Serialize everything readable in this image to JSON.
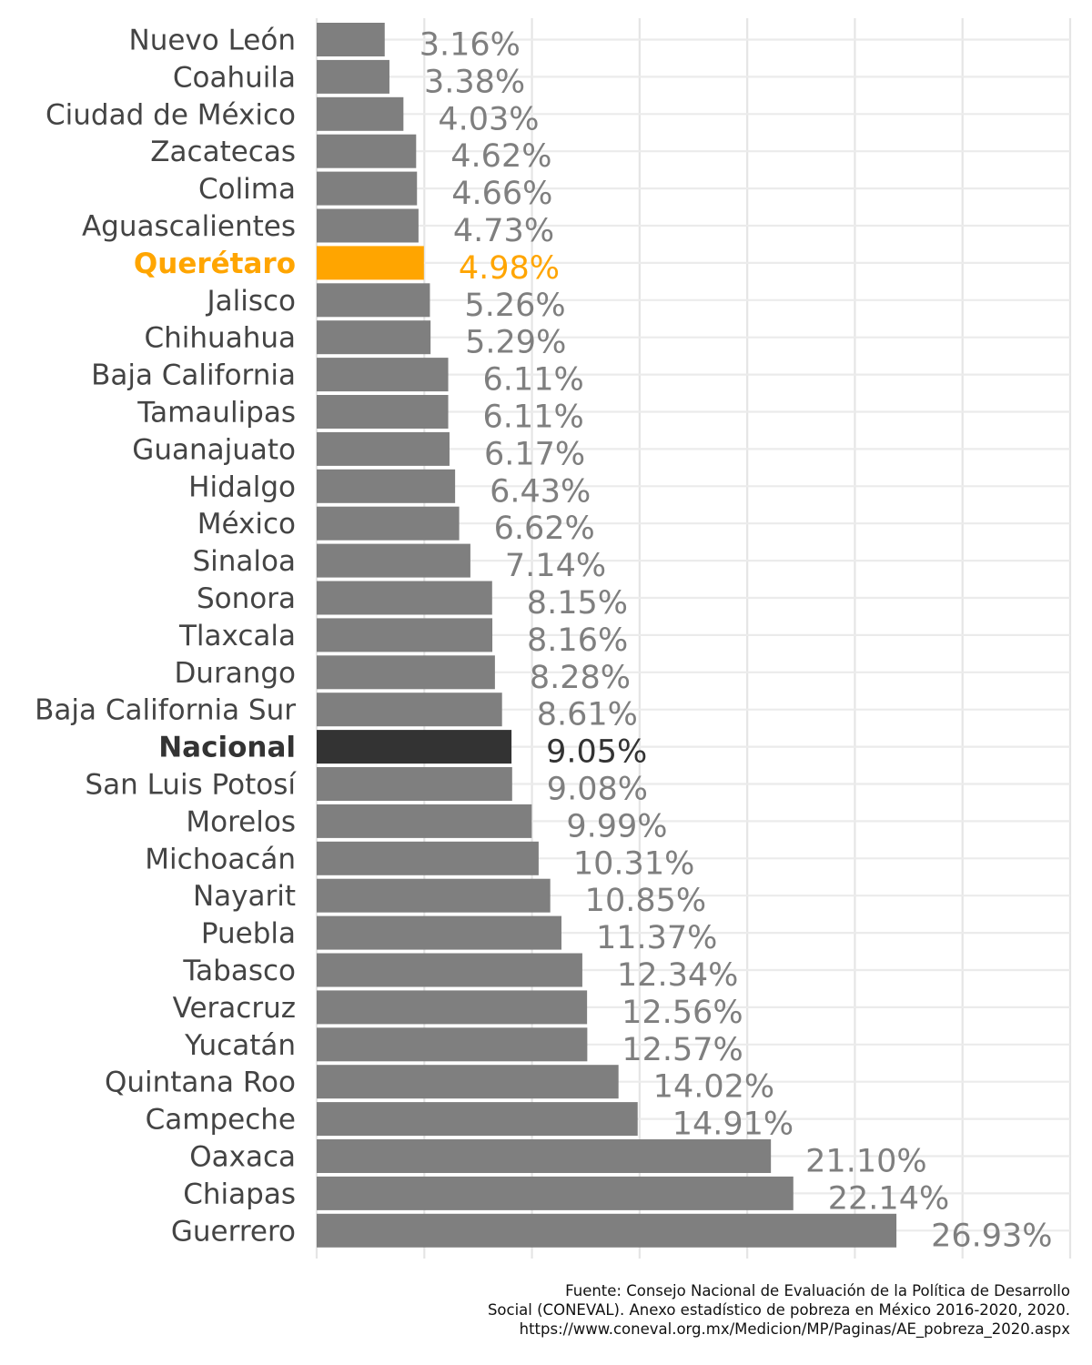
{
  "chart_data": {
    "type": "bar",
    "orientation": "horizontal",
    "categories": [
      "Nuevo León",
      "Coahuila",
      "Ciudad de México",
      "Zacatecas",
      "Colima",
      "Aguascalientes",
      "Querétaro",
      "Jalisco",
      "Chihuahua",
      "Baja California",
      "Tamaulipas",
      "Guanajuato",
      "Hidalgo",
      "México",
      "Sinaloa",
      "Sonora",
      "Tlaxcala",
      "Durango",
      "Baja California Sur",
      "Nacional",
      "San Luis Potosí",
      "Morelos",
      "Michoacán",
      "Nayarit",
      "Puebla",
      "Tabasco",
      "Veracruz",
      "Yucatán",
      "Quintana Roo",
      "Campeche",
      "Oaxaca",
      "Chiapas",
      "Guerrero"
    ],
    "values": [
      3.16,
      3.38,
      4.03,
      4.62,
      4.66,
      4.73,
      4.98,
      5.26,
      5.29,
      6.11,
      6.11,
      6.17,
      6.43,
      6.62,
      7.14,
      8.15,
      8.16,
      8.28,
      8.61,
      9.05,
      9.08,
      9.99,
      10.31,
      10.85,
      11.37,
      12.34,
      12.56,
      12.57,
      14.02,
      14.91,
      21.1,
      22.14,
      26.93
    ],
    "value_labels": [
      "3.16%",
      "3.38%",
      "4.03%",
      "4.62%",
      "4.66%",
      "4.73%",
      "4.98%",
      "5.26%",
      "5.29%",
      "6.11%",
      "6.11%",
      "6.17%",
      "6.43%",
      "6.62%",
      "7.14%",
      "8.15%",
      "8.16%",
      "8.28%",
      "8.61%",
      "9.05%",
      "9.08%",
      "9.99%",
      "10.31%",
      "10.85%",
      "11.37%",
      "12.34%",
      "12.56%",
      "12.57%",
      "14.02%",
      "14.91%",
      "21.10%",
      "22.14%",
      "26.93%"
    ],
    "highlight": {
      "Querétaro": "#ffa500",
      "Nacional": "#333333"
    },
    "bold_categories": [
      "Querétaro",
      "Nacional"
    ],
    "bar_color": "#7f7f7f",
    "label_color": "#7f7f7f",
    "title": "",
    "xlabel": "",
    "ylabel": "",
    "xlim": [
      0,
      35
    ],
    "grid": true,
    "legend": "none"
  },
  "source": {
    "lines": [
      "Fuente: Consejo Nacional de Evaluación de la Política de Desarrollo",
      "Social (CONEVAL). Anexo estadístico de pobreza en México 2016-2020, 2020.",
      "https://www.coneval.org.mx/Medicion/MP/Paginas/AE_pobreza_2020.aspx"
    ]
  }
}
